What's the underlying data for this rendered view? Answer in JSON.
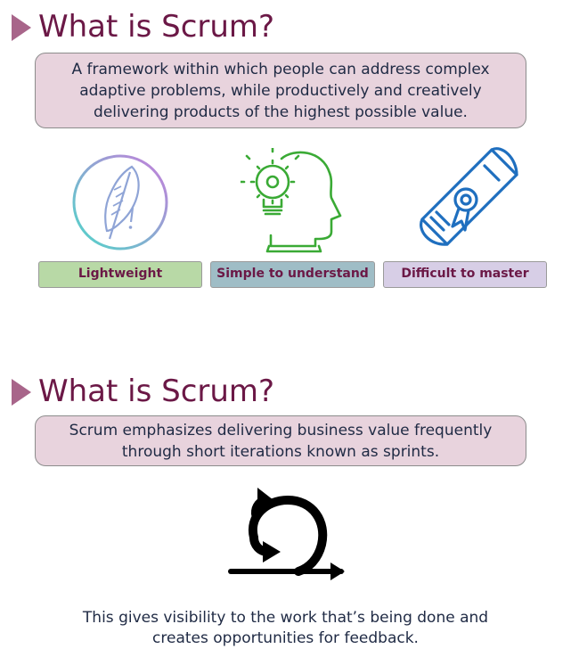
{
  "section1": {
    "title": "What is Scrum?",
    "definition": "A framework within which people can address complex adaptive problems, while productively and creatively delivering products of the highest possible value.",
    "icons": [
      "feather-icon",
      "head-gear-bulb-icon",
      "diploma-scroll-icon"
    ],
    "labels": [
      {
        "text": "Lightweight",
        "color": "#b8d9a6"
      },
      {
        "text": "Simple to understand",
        "color": "#9fbdc6"
      },
      {
        "text": "Difficult to master",
        "color": "#d7cee6"
      }
    ]
  },
  "section2": {
    "title": "What is Scrum?",
    "definition": "Scrum emphasizes delivering business value frequently through short iterations known as sprints.",
    "icon": "sprint-cycle-arrow-icon",
    "footer": "This gives visibility to the work that’s being done and creates opportunities for feedback."
  },
  "colors": {
    "accent": "#6b1846",
    "triangle": "#a8658a",
    "box_fill": "#e8d3dd",
    "icon_green": "#3aaa35",
    "icon_blue": "#1f6fbf"
  }
}
